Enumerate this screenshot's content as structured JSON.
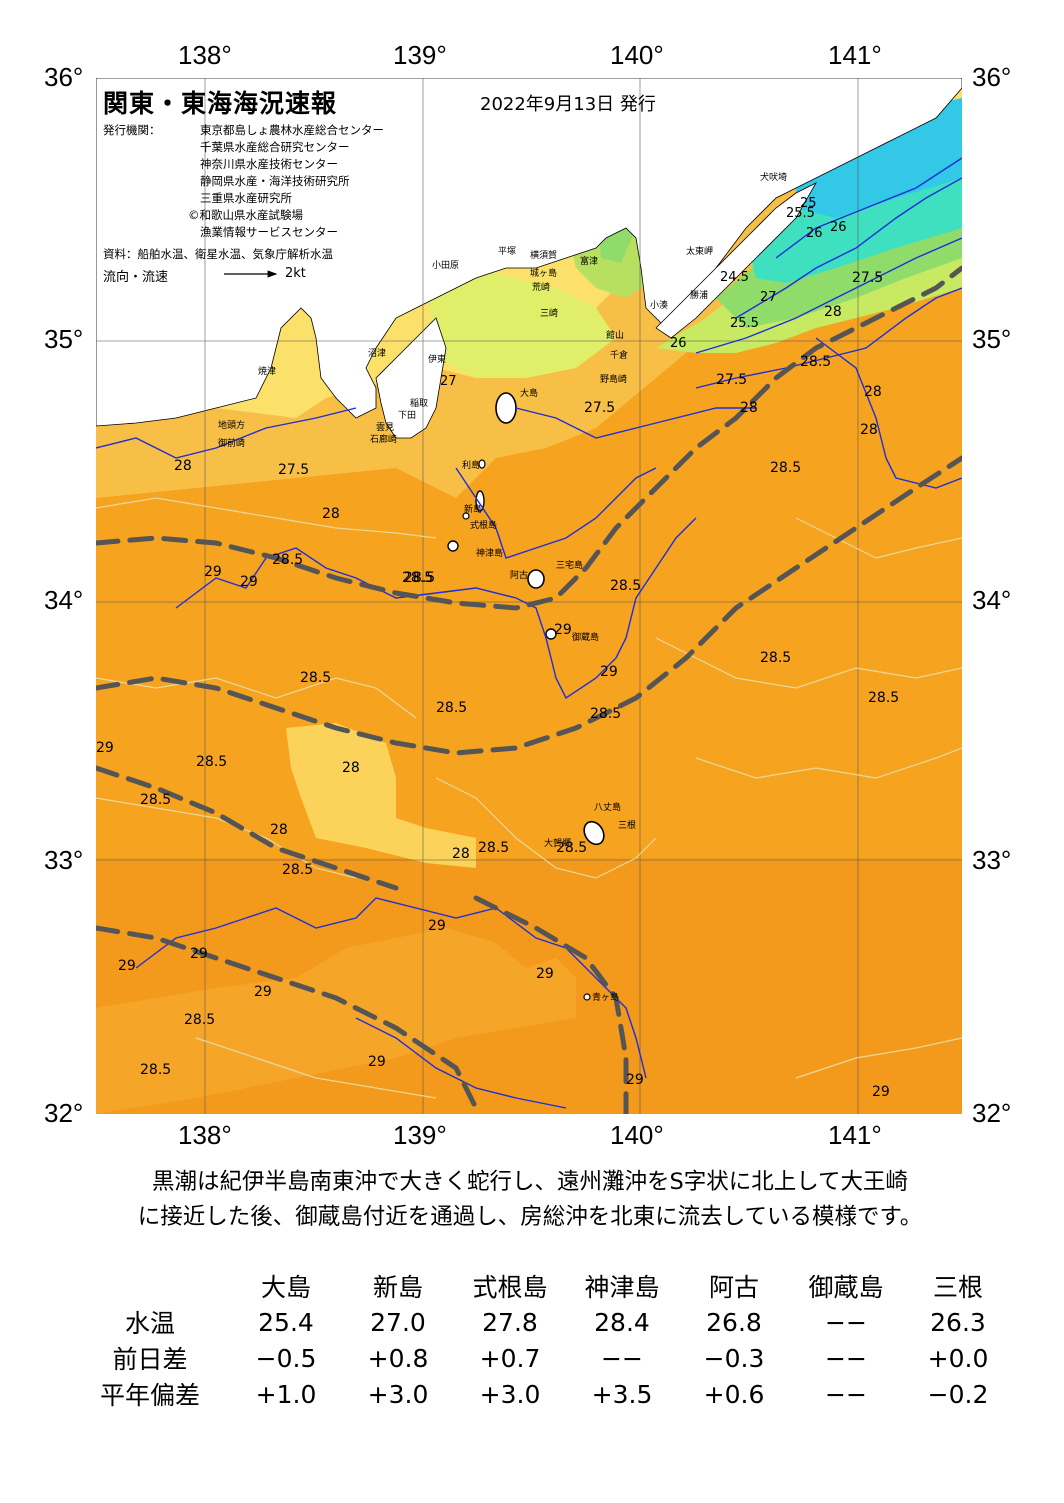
{
  "header": {
    "title": "関東・東海海況速報",
    "date": "2022年9月13日 発行",
    "publisher_label": "発行機関：",
    "publishers": [
      "東京都島しょ農林水産総合センター",
      "千葉県水産総合研究センター",
      "神奈川県水産技術センター",
      "静岡県水産・海洋技術研究所",
      "三重県水産研究所",
      "©和歌山県水産試験場",
      "漁業情報サービスセンター"
    ],
    "source": "資料：船舶水温、衛星水温、気象庁解析水温",
    "current_label": "流向・流速",
    "current_scale": "2kt"
  },
  "map": {
    "lon_ticks": [
      "138°",
      "139°",
      "140°",
      "141°"
    ],
    "lat_ticks": [
      "36°",
      "35°",
      "34°",
      "33°",
      "32°"
    ],
    "colors": {
      "sea_285": "#f6a320",
      "sea_29": "#f39a1c",
      "warm_orange": "#f6a82a",
      "light_orange": "#f8bf46",
      "yellow": "#fbe16a",
      "lime": "#c8ea62",
      "green": "#8fdc6a",
      "teal": "#3fe0c0",
      "cyan": "#33c8e6",
      "land": "#ffffff",
      "isotherm_major": "#1e2ed8",
      "isotherm_minor": "#e0d8a0",
      "kuroshio_axis": "#555555"
    },
    "place_labels": [
      "犬吠埼",
      "太東岬",
      "勝浦",
      "小湊",
      "館山",
      "千倉",
      "野島崎",
      "富津",
      "横須賀",
      "城ヶ島",
      "荒崎",
      "三崎",
      "平塚",
      "小田原",
      "沼津",
      "伊東",
      "稲取",
      "下田",
      "石廊崎",
      "雲見",
      "大島",
      "利島",
      "新島",
      "式根島",
      "神津島",
      "三宅島",
      "阿古",
      "御蔵島",
      "八丈島",
      "大賀郷",
      "三根",
      "青ヶ島",
      "焼津",
      "御前崎",
      "地頭方"
    ],
    "isotherm_labels": [
      "24.5",
      "25",
      "25.5",
      "25.5",
      "26",
      "26",
      "26",
      "27",
      "27",
      "27.5",
      "27.5",
      "27.5",
      "27.5",
      "28",
      "28",
      "28",
      "28",
      "28",
      "28",
      "28",
      "28",
      "28",
      "28.5",
      "28.5",
      "28.5",
      "28.5",
      "28.5",
      "28.5",
      "28.5",
      "28.5",
      "28.5",
      "28.5",
      "28.5",
      "28.5",
      "28.5",
      "28.5",
      "28.5",
      "28.5",
      "28.5",
      "28.5",
      "29",
      "29",
      "29",
      "29",
      "29",
      "29",
      "29",
      "29",
      "29",
      "29",
      "29",
      "29",
      "29"
    ]
  },
  "summary": [
    "黒潮は紀伊半島南東沖で大きく蛇行し、遠州灘沖をS字状に北上して大王崎",
    "に接近した後、御蔵島付近を通過し、房総沖を北東に流去している模様です。"
  ],
  "table": {
    "columns": [
      "大島",
      "新島",
      "式根島",
      "神津島",
      "阿古",
      "御蔵島",
      "三根"
    ],
    "rows": [
      {
        "label": "水温",
        "values": [
          "25.4",
          "27.0",
          "27.8",
          "28.4",
          "26.8",
          "−−",
          "26.3"
        ]
      },
      {
        "label": "前日差",
        "values": [
          "−0.5",
          "+0.8",
          "+0.7",
          "−−",
          "−0.3",
          "−−",
          "+0.0"
        ]
      },
      {
        "label": "平年偏差",
        "values": [
          "+1.0",
          "+3.0",
          "+3.0",
          "+3.5",
          "+0.6",
          "−−",
          "−0.2"
        ]
      }
    ]
  }
}
